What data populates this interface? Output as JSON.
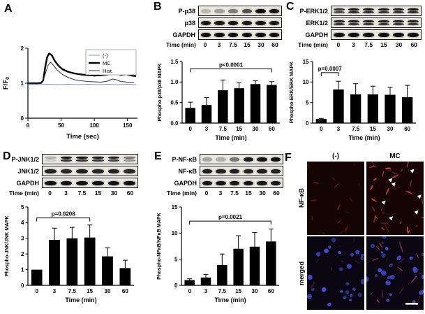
{
  "panels": {
    "A": "A",
    "B": "B",
    "C": "C",
    "D": "D",
    "E": "E",
    "F": "F"
  },
  "blots": {
    "B": {
      "rows": [
        {
          "label": "P-p38",
          "doublet": false,
          "bands": [
            0.22,
            0.32,
            0.48,
            0.65,
            0.97,
            0.95
          ]
        },
        {
          "label": "p38",
          "doublet": false,
          "bands": [
            0.92,
            0.9,
            0.93,
            0.9,
            0.92,
            0.9
          ]
        },
        {
          "label": "GAPDH",
          "doublet": false,
          "bands": [
            0.95,
            0.95,
            0.95,
            0.95,
            0.95,
            0.95
          ]
        }
      ],
      "time_label": "Time (min)",
      "times": [
        "0",
        "3",
        "7.5",
        "15",
        "30",
        "60"
      ]
    },
    "C": {
      "rows": [
        {
          "label": "P-ERK1/2",
          "doublet": true,
          "bands": [
            0.8,
            0.95,
            0.95,
            0.9,
            0.92,
            0.95
          ]
        },
        {
          "label": "ERK1/2",
          "doublet": true,
          "bands": [
            0.9,
            0.9,
            0.9,
            0.9,
            0.9,
            0.9
          ]
        },
        {
          "label": "GAPDH",
          "doublet": false,
          "bands": [
            0.95,
            0.95,
            0.95,
            0.95,
            0.95,
            0.95
          ]
        }
      ],
      "time_label": "Time (min)",
      "times": [
        "0",
        "3",
        "7.5",
        "15",
        "30",
        "60"
      ]
    },
    "D": {
      "rows": [
        {
          "label": "P-JNK1/2",
          "doublet": true,
          "bands": [
            0.25,
            0.92,
            0.93,
            0.9,
            0.85,
            0.5
          ]
        },
        {
          "label": "JNK1/2",
          "doublet": false,
          "bands": [
            0.88,
            0.85,
            0.88,
            0.85,
            0.88,
            0.85
          ]
        },
        {
          "label": "GAPDH",
          "doublet": false,
          "bands": [
            0.95,
            0.95,
            0.95,
            0.95,
            0.95,
            0.95
          ]
        }
      ],
      "time_label": "Time (min)",
      "times": [
        "0",
        "3",
        "7.5",
        "15",
        "30",
        "60"
      ]
    },
    "E": {
      "rows": [
        {
          "label": "P-NF-κB",
          "doublet": false,
          "bands": [
            0.3,
            0.25,
            0.5,
            0.9,
            0.95,
            0.95
          ]
        },
        {
          "label": "NF-κB",
          "doublet": false,
          "bands": [
            0.9,
            0.88,
            0.9,
            0.88,
            0.9,
            0.88
          ]
        },
        {
          "label": "GAPDH",
          "doublet": false,
          "bands": [
            0.93,
            0.93,
            0.93,
            0.93,
            0.93,
            0.93
          ]
        }
      ],
      "time_label": "Time (min)",
      "times": [
        "0",
        "3",
        "7.5",
        "15",
        "30",
        "60"
      ]
    }
  },
  "chart_data": [
    {
      "panel": "A",
      "type": "line",
      "title": "",
      "xlabel": "Time (sec)",
      "ylabel": "F/F0",
      "ylabel_main": "F/F",
      "ylabel_sub": "0",
      "xlim": [
        0,
        165
      ],
      "ylim": [
        0,
        2
      ],
      "xticks": [
        0,
        50,
        100,
        150
      ],
      "yticks": [
        0,
        1,
        2
      ],
      "grid": false,
      "legend_position": "top-right",
      "series": [
        {
          "name": "(-)",
          "color": "#8692d6",
          "width": 1,
          "x": [
            0,
            15,
            30,
            45,
            60,
            75,
            90,
            105,
            120,
            135,
            150,
            163
          ],
          "y": [
            0.97,
            0.96,
            0.97,
            0.96,
            0.97,
            0.96,
            0.97,
            0.96,
            0.97,
            0.96,
            0.97,
            0.96
          ]
        },
        {
          "name": "MC",
          "color": "#000000",
          "width": 2.4,
          "x": [
            0,
            5,
            10,
            15,
            20,
            23,
            26,
            29,
            32,
            36,
            40,
            46,
            52,
            60,
            70,
            80,
            90,
            100,
            110,
            120,
            128,
            134,
            140,
            148,
            156,
            163
          ],
          "y": [
            1,
            1,
            1,
            1,
            1.01,
            1.08,
            1.45,
            1.75,
            1.85,
            1.8,
            1.65,
            1.5,
            1.4,
            1.33,
            1.28,
            1.25,
            1.23,
            1.22,
            1.23,
            1.25,
            1.3,
            1.28,
            1.24,
            1.26,
            1.22,
            1.2
          ]
        },
        {
          "name": "Hist.",
          "color": "#333333",
          "width": 1,
          "x": [
            0,
            10,
            18,
            22,
            26,
            30,
            34,
            38,
            44,
            52,
            60,
            70,
            80,
            90,
            100,
            110,
            120,
            127,
            133,
            140,
            150,
            160
          ],
          "y": [
            1,
            1,
            1,
            1.03,
            1.25,
            1.5,
            1.6,
            1.52,
            1.38,
            1.25,
            1.17,
            1.1,
            1.07,
            1.05,
            1.04,
            1.03,
            1.06,
            1.12,
            1.1,
            1.05,
            1.03,
            1.02
          ]
        }
      ]
    },
    {
      "panel": "B",
      "type": "bar",
      "categories": [
        "0",
        "3",
        "7.5",
        "15",
        "30",
        "60"
      ],
      "values": [
        0.37,
        0.44,
        0.8,
        0.85,
        0.95,
        0.93
      ],
      "errors": [
        0.14,
        0.18,
        0.25,
        0.13,
        0.08,
        0.08
      ],
      "ylim": [
        0,
        1.5
      ],
      "ytick_vals": [
        0,
        0.5,
        1,
        1.5
      ],
      "ytick_labels": [
        "0.0",
        "0.5",
        "1.0",
        "1.5"
      ],
      "xlabel": "Time (min)",
      "ylabel": "Phospho-p38/p38 MAPK",
      "bracket": {
        "from": 0,
        "to": 5,
        "y": 1.32,
        "label": "p<0.0001"
      }
    },
    {
      "panel": "C",
      "type": "bar",
      "categories": [
        "0",
        "3",
        "7.5",
        "15",
        "30",
        "60"
      ],
      "values": [
        1.0,
        8.2,
        7.0,
        7.0,
        6.9,
        6.3
      ],
      "errors": [
        0.15,
        2.0,
        2.6,
        2.0,
        1.8,
        2.9
      ],
      "ylim": [
        0,
        15
      ],
      "ytick_vals": [
        0,
        5,
        10,
        15
      ],
      "ytick_labels": [
        "0",
        "5",
        "10",
        "15"
      ],
      "xlabel": "Time (min)",
      "ylabel": "Phospho-ERK/ERK MAPK",
      "bracket": {
        "from": 0,
        "to": 1,
        "y": 12.3,
        "label": "p=0.0007"
      }
    },
    {
      "panel": "D",
      "type": "bar",
      "categories": [
        "0",
        "3",
        "7.5",
        "15",
        "30",
        "60"
      ],
      "values": [
        1.0,
        2.9,
        3.0,
        3.05,
        1.85,
        1.1
      ],
      "errors": [
        0,
        0.75,
        0.7,
        0.8,
        0.55,
        0.5
      ],
      "ylim": [
        0,
        5
      ],
      "ytick_vals": [
        0,
        1,
        2,
        3,
        4,
        5
      ],
      "ytick_labels": [
        "0",
        "1",
        "2",
        "3",
        "4",
        "5"
      ],
      "xlabel": "Time (min)",
      "ylabel": "Phospho-JNK/JNK MAPK",
      "bracket": {
        "from": 0,
        "to": 3,
        "y": 4.3,
        "label": "p=0.0208"
      }
    },
    {
      "panel": "E",
      "type": "bar",
      "categories": [
        "0",
        "3",
        "7.5",
        "15",
        "30",
        "60"
      ],
      "values": [
        1.0,
        1.5,
        3.9,
        7.0,
        7.4,
        8.4
      ],
      "errors": [
        0.25,
        0.6,
        2.1,
        2.5,
        2.7,
        2.4
      ],
      "ylim": [
        0,
        15
      ],
      "ytick_vals": [
        0,
        5,
        10,
        15
      ],
      "ytick_labels": [
        "0",
        "5",
        "10",
        "15"
      ],
      "xlabel": "Time (min)",
      "ylabel": "Phospho-NFκB/NFκB MAPK",
      "bracket": {
        "from": 0,
        "to": 5,
        "y": 12.3,
        "label": "p=0.0021"
      }
    }
  ],
  "panelF": {
    "col_headers": [
      "(-)",
      "MC"
    ],
    "row_labels": [
      "NF-κB",
      "merged"
    ],
    "has_scale_bar": true,
    "arrow_color": "#ffffff",
    "nfkb_stain_color": "#e34646",
    "nuclei_stain_color": "#4652d8"
  }
}
